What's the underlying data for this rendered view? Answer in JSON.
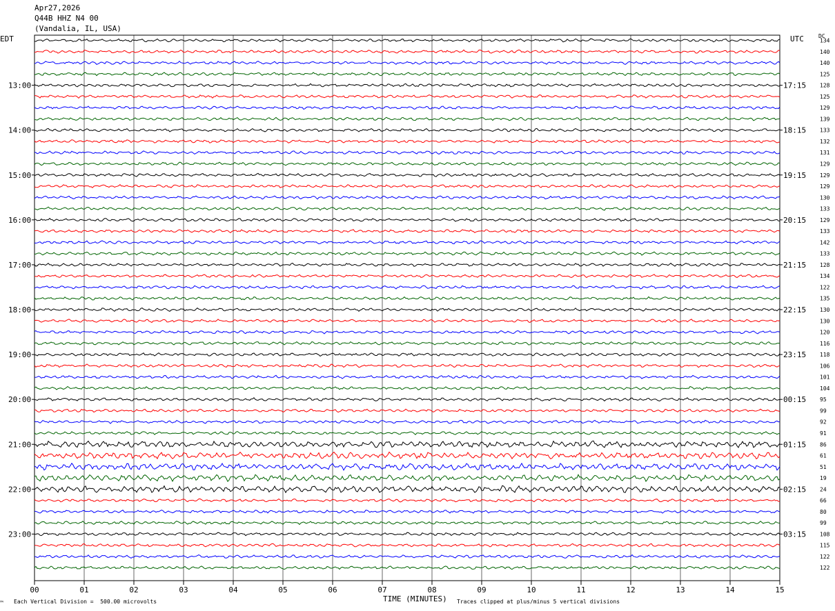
{
  "header": {
    "date": "Apr27,2026",
    "station": "Q44B HHZ N4 00",
    "location": "(Vandalia, IL, USA)"
  },
  "left_label": "EDT",
  "right_label": "UTC",
  "dc_label": "DC",
  "footer": {
    "scale_note": "Each Vertical Division =  500.00 microvolts",
    "clip_note": "Traces clipped at plus/minus 5 vertical divisions",
    "mark": "™"
  },
  "colors": {
    "cycle": [
      "#000000",
      "#ff0000",
      "#0000ff",
      "#006400"
    ],
    "grid": "#000000"
  },
  "chart_data": {
    "type": "line",
    "title": "",
    "xlabel": "TIME (MINUTES)",
    "ylabel": "",
    "x_ticks": [
      "00",
      "01",
      "02",
      "03",
      "04",
      "05",
      "06",
      "07",
      "08",
      "09",
      "10",
      "11",
      "12",
      "13",
      "14",
      "15"
    ],
    "xlim": [
      0,
      15
    ],
    "left_time_labels": [
      "13:00",
      "14:00",
      "15:00",
      "16:00",
      "17:00",
      "18:00",
      "19:00",
      "20:00",
      "21:00",
      "22:00",
      "23:00"
    ],
    "right_time_labels": [
      "17:15",
      "18:15",
      "19:15",
      "20:15",
      "21:15",
      "22:15",
      "23:15",
      "00:15",
      "01:15",
      "02:15",
      "03:15"
    ],
    "dc_offsets": [
      134,
      140,
      140,
      125,
      128,
      125,
      129,
      139,
      133,
      132,
      131,
      129,
      129,
      129,
      130,
      133,
      129,
      133,
      142,
      133,
      128,
      134,
      122,
      135,
      130,
      130,
      120,
      116,
      118,
      106,
      101,
      104,
      95,
      99,
      92,
      91,
      86,
      61,
      51,
      19,
      24,
      66,
      80,
      99,
      108,
      115,
      122,
      122
    ],
    "trace_count": 48,
    "noisy_traces": [
      36,
      37,
      38,
      39,
      40
    ]
  }
}
